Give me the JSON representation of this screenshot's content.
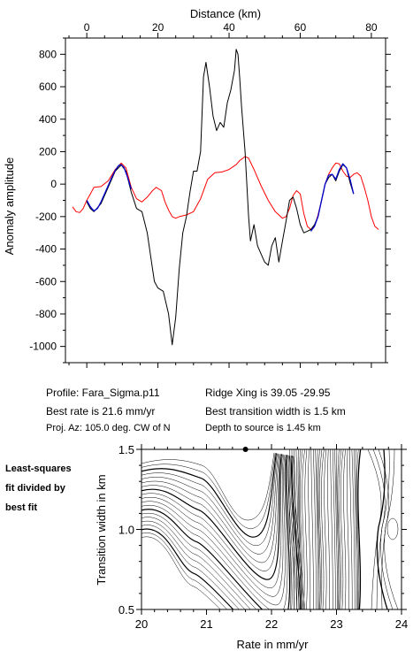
{
  "chart_data": [
    {
      "type": "line",
      "title": "",
      "xlabel": "Distance (km)",
      "ylabel": "Anomaly amplitude",
      "xlim": [
        -6,
        84
      ],
      "ylim": [
        -1100,
        900
      ],
      "x_ticks": [
        0,
        20,
        40,
        60,
        80
      ],
      "x_tick_labels": [
        "0",
        "20",
        "40",
        "60",
        "80"
      ],
      "y_ticks": [
        800,
        600,
        400,
        200,
        0,
        -200,
        -400,
        -600,
        -800,
        -1000
      ],
      "y_tick_labels": [
        "800",
        "600",
        "400",
        "200",
        "0",
        "-200",
        "-400",
        "-600",
        "-800",
        "-1000"
      ],
      "grid": false,
      "series": [
        {
          "color": "#000000",
          "points": [
            [
              0,
              -110
            ],
            [
              1,
              -150
            ],
            [
              2,
              -170
            ],
            [
              4,
              -120
            ],
            [
              6,
              -20
            ],
            [
              8,
              80
            ],
            [
              9.7,
              118
            ],
            [
              11,
              80
            ],
            [
              12.5,
              -50
            ],
            [
              14,
              -150
            ],
            [
              15.5,
              -170
            ],
            [
              17,
              -300
            ],
            [
              18,
              -450
            ],
            [
              19,
              -600
            ],
            [
              20,
              -640
            ],
            [
              21.5,
              -660
            ],
            [
              23,
              -800
            ],
            [
              24,
              -990
            ],
            [
              25,
              -820
            ],
            [
              26,
              -520
            ],
            [
              27,
              -300
            ],
            [
              28,
              -200
            ],
            [
              29,
              -50
            ],
            [
              30,
              80
            ],
            [
              31,
              80
            ],
            [
              32,
              200
            ],
            [
              32.8,
              660
            ],
            [
              33.5,
              750
            ],
            [
              34.5,
              600
            ],
            [
              35.5,
              420
            ],
            [
              36.5,
              330
            ],
            [
              37.5,
              380
            ],
            [
              38.5,
              350
            ],
            [
              39.5,
              500
            ],
            [
              40.5,
              580
            ],
            [
              41.5,
              700
            ],
            [
              42,
              830
            ],
            [
              42.5,
              800
            ],
            [
              43,
              650
            ],
            [
              43.5,
              480
            ],
            [
              44.5,
              200
            ],
            [
              45.5,
              -200
            ],
            [
              46,
              -350
            ],
            [
              47,
              -250
            ],
            [
              48,
              -380
            ],
            [
              49,
              -430
            ],
            [
              50,
              -480
            ],
            [
              51,
              -500
            ],
            [
              52,
              -380
            ],
            [
              53,
              -330
            ],
            [
              54,
              -480
            ],
            [
              55,
              -350
            ],
            [
              56,
              -230
            ],
            [
              57,
              -100
            ],
            [
              58,
              -80
            ],
            [
              59,
              -150
            ],
            [
              60,
              -250
            ],
            [
              61,
              -300
            ],
            [
              62,
              -290
            ],
            [
              63,
              -280
            ],
            [
              64,
              -250
            ],
            [
              65,
              -200
            ],
            [
              66,
              -100
            ],
            [
              67,
              0
            ],
            [
              68,
              40
            ],
            [
              69,
              60
            ],
            [
              70,
              20
            ],
            [
              71,
              80
            ],
            [
              72,
              120
            ],
            [
              73,
              100
            ],
            [
              74,
              10
            ],
            [
              75,
              -60
            ]
          ]
        },
        {
          "color": "#0000cc",
          "points": [
            [
              0,
              -100
            ],
            [
              1,
              -140
            ],
            [
              2,
              -165
            ],
            [
              3,
              -150
            ],
            [
              4,
              -110
            ],
            [
              5,
              -60
            ],
            [
              6,
              -10
            ],
            [
              7,
              40
            ],
            [
              8,
              85
            ],
            [
              9,
              115
            ],
            [
              9.7,
              120
            ],
            [
              10.5,
              100
            ],
            [
              11.5,
              40
            ],
            [
              12.5,
              -30
            ],
            [
              63,
              -290
            ],
            [
              64,
              -260
            ],
            [
              65,
              -200
            ],
            [
              66,
              -100
            ],
            [
              67,
              0
            ],
            [
              68,
              55
            ],
            [
              69,
              60
            ],
            [
              70,
              30
            ],
            [
              71,
              90
            ],
            [
              72,
              125
            ],
            [
              73,
              100
            ],
            [
              74,
              30
            ],
            [
              75,
              -60
            ]
          ]
        },
        {
          "color": "#ff0000",
          "points": [
            [
              -4,
              -140
            ],
            [
              -3,
              -170
            ],
            [
              -2,
              -175
            ],
            [
              -1,
              -150
            ],
            [
              0,
              -100
            ],
            [
              1,
              -60
            ],
            [
              2,
              -20
            ],
            [
              4,
              -15
            ],
            [
              6,
              20
            ],
            [
              8,
              90
            ],
            [
              9.7,
              130
            ],
            [
              11,
              100
            ],
            [
              12.5,
              -20
            ],
            [
              14,
              -90
            ],
            [
              15.5,
              -110
            ],
            [
              17,
              -80
            ],
            [
              18.5,
              -40
            ],
            [
              19.5,
              -20
            ],
            [
              21,
              -40
            ],
            [
              22,
              -110
            ],
            [
              23,
              -160
            ],
            [
              24,
              -200
            ],
            [
              25,
              -210
            ],
            [
              26,
              -200
            ],
            [
              28,
              -190
            ],
            [
              30,
              -170
            ],
            [
              32,
              -90
            ],
            [
              34,
              30
            ],
            [
              36,
              70
            ],
            [
              38,
              75
            ],
            [
              40,
              90
            ],
            [
              42,
              120
            ],
            [
              43,
              145
            ],
            [
              44.5,
              170
            ],
            [
              45.5,
              160
            ],
            [
              47,
              90
            ],
            [
              49,
              -10
            ],
            [
              51,
              -100
            ],
            [
              53,
              -170
            ],
            [
              55,
              -210
            ],
            [
              56,
              -200
            ],
            [
              57,
              -150
            ],
            [
              58,
              -70
            ],
            [
              59,
              -40
            ],
            [
              60,
              -60
            ],
            [
              61,
              -180
            ],
            [
              62,
              -260
            ],
            [
              63,
              -280
            ],
            [
              64,
              -260
            ],
            [
              65,
              -190
            ],
            [
              66,
              -100
            ],
            [
              67,
              0
            ],
            [
              68,
              60
            ],
            [
              69,
              100
            ],
            [
              70,
              130
            ],
            [
              71,
              125
            ],
            [
              72,
              80
            ],
            [
              73,
              50
            ],
            [
              74,
              40
            ],
            [
              75,
              60
            ],
            [
              76,
              70
            ],
            [
              77,
              50
            ],
            [
              78,
              -20
            ],
            [
              79,
              -100
            ],
            [
              80,
              -200
            ],
            [
              81,
              -260
            ],
            [
              82,
              -280
            ]
          ]
        }
      ]
    },
    {
      "type": "contour",
      "title": "",
      "xlabel": "Rate in mm/yr",
      "ylabel": "Transition width in km",
      "xlim": [
        20,
        24
      ],
      "ylim": [
        0.5,
        1.5
      ],
      "x_ticks": [
        20,
        21,
        22,
        23,
        24
      ],
      "x_tick_labels": [
        "20",
        "21",
        "22",
        "23",
        "24"
      ],
      "y_ticks": [
        0.5,
        1.0,
        1.5
      ],
      "y_tick_labels": [
        "0.5",
        "1.0",
        "1.5"
      ],
      "best_fit_point": [
        21.6,
        1.5
      ],
      "side_note": [
        "Least-squares",
        "fit divided by",
        "best fit"
      ]
    }
  ],
  "info": {
    "profile": "Profile: Fara_Sigma.p11",
    "best_rate": "Best rate is 21.6 mm/yr",
    "proj_az": "Proj. Az: 105.0 deg. CW of N",
    "ridge_xing": "Ridge Xing is 39.05 -29.95",
    "best_width": "Best transition width is 1.5 km",
    "depth": "Depth to source is   1.45 km"
  }
}
